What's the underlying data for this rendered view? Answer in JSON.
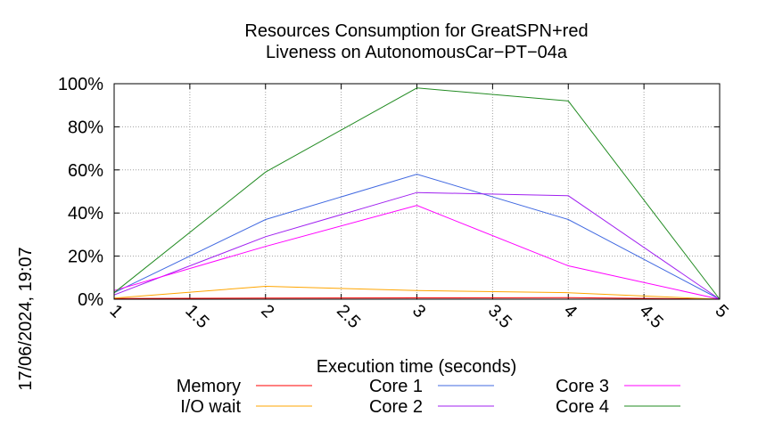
{
  "chart_data": {
    "type": "line",
    "title_lines": [
      "Resources Consumption for GreatSPN+red",
      "Liveness on AutonomousCar−PT−04a"
    ],
    "xlabel": "Execution time (seconds)",
    "ylabel": "",
    "side_label": "17/06/2024, 19:07",
    "xlim": [
      1,
      5
    ],
    "ylim": [
      0,
      100
    ],
    "x_ticks": [
      "1",
      "1.5",
      "2",
      "2.5",
      "3",
      "3.5",
      "4",
      "4.5",
      "5"
    ],
    "y_ticks": [
      "0%",
      "20%",
      "40%",
      "60%",
      "80%",
      "100%"
    ],
    "grid": true,
    "legend_position": "bottom",
    "x": [
      1,
      2,
      3,
      4,
      5
    ],
    "series": [
      {
        "name": "Memory",
        "color": "#ff0000",
        "values": [
          0.3,
          0.5,
          0.6,
          0.7,
          0
        ]
      },
      {
        "name": "I/O wait",
        "color": "#ffa500",
        "values": [
          0.5,
          6,
          4,
          3,
          0
        ]
      },
      {
        "name": "Core 1",
        "color": "#4169e1",
        "values": [
          3,
          37,
          58,
          37,
          0
        ]
      },
      {
        "name": "Core 2",
        "color": "#a020f0",
        "values": [
          2,
          29,
          49.5,
          48,
          0
        ]
      },
      {
        "name": "Core 3",
        "color": "#ff00ff",
        "values": [
          4,
          24.5,
          43.5,
          15.5,
          0
        ]
      },
      {
        "name": "Core 4",
        "color": "#228b22",
        "values": [
          3,
          59,
          98,
          92,
          0
        ]
      }
    ]
  }
}
